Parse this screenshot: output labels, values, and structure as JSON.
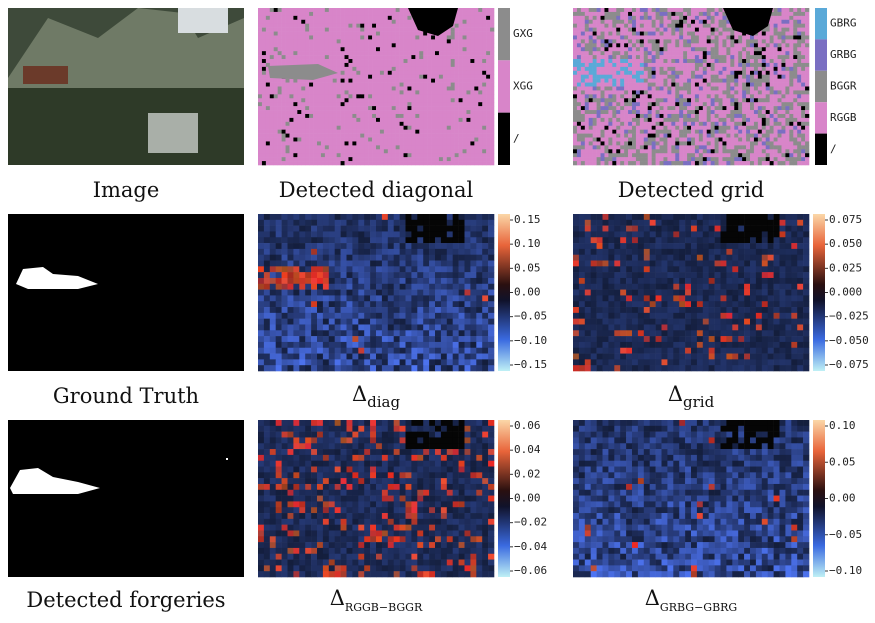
{
  "panels": [
    {
      "caption": "Image"
    },
    {
      "caption": "Detected diagonal",
      "colorbar": [
        "GXG",
        "XGG",
        "/"
      ]
    },
    {
      "caption": "Detected grid",
      "colorbar": [
        "GBRG",
        "GRBG",
        "BGGR",
        "RGGB",
        "/"
      ]
    },
    {
      "caption": "Ground Truth"
    },
    {
      "symbol": "Δ",
      "subscript": "diag",
      "colorbar": [
        "0.15",
        "0.10",
        "0.05",
        "0.00",
        "−0.05",
        "−0.10",
        "−0.15"
      ]
    },
    {
      "symbol": "Δ",
      "subscript": "grid",
      "colorbar": [
        "0.075",
        "0.050",
        "0.025",
        "0.000",
        "−0.025",
        "−0.050",
        "−0.075"
      ]
    },
    {
      "caption": "Detected forgeries"
    },
    {
      "symbol": "Δ",
      "subscript": "RGGB−BGGR",
      "colorbar": [
        "0.06",
        "0.04",
        "0.02",
        "0.00",
        "−0.02",
        "−0.04",
        "−0.06"
      ]
    },
    {
      "symbol": "Δ",
      "subscript": "GRBG−GBRG",
      "colorbar": [
        "0.10",
        "0.05",
        "0.00",
        "−0.05",
        "−0.10"
      ]
    }
  ]
}
